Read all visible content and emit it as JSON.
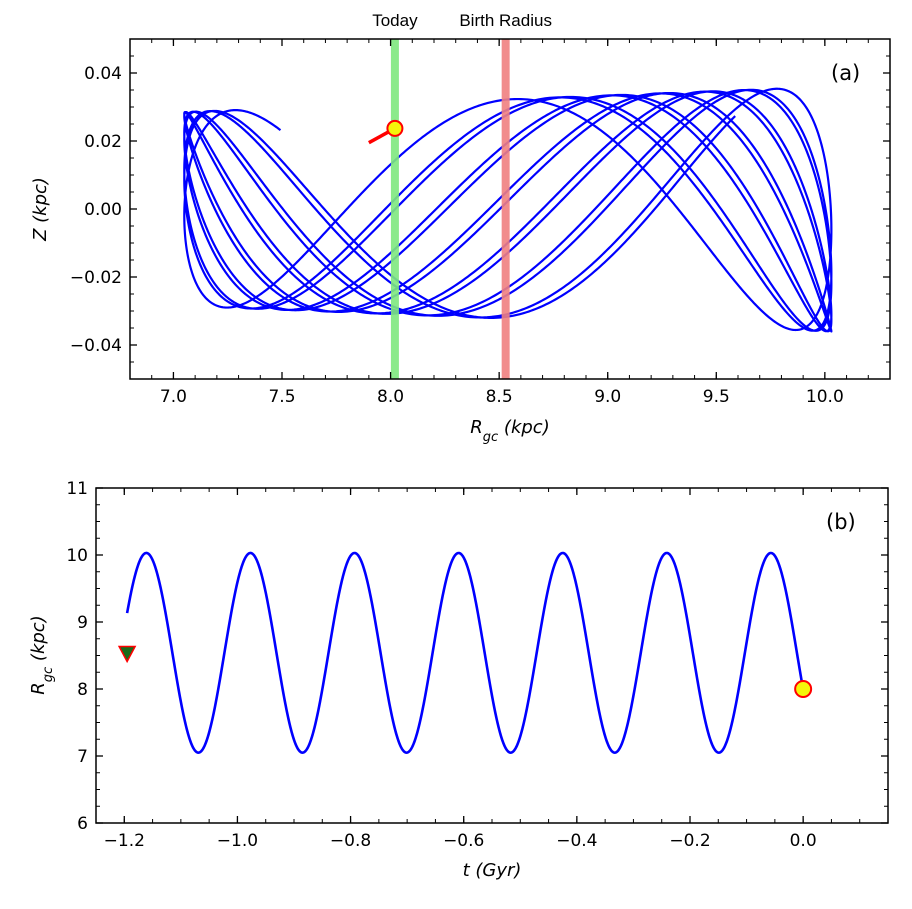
{
  "chart_data": [
    {
      "type": "line",
      "panel_label": "(a)",
      "xlabel_main": "R",
      "xlabel_sub": "gc",
      "xlabel_unit": " (kpc)",
      "ylabel": "Z (kpc)",
      "xlim": [
        6.8,
        10.3
      ],
      "ylim": [
        -0.05,
        0.05
      ],
      "xticks": [
        7.0,
        7.5,
        8.0,
        8.5,
        9.0,
        9.5,
        10.0
      ],
      "xtick_labels": [
        "7.0",
        "7.5",
        "8.0",
        "8.5",
        "9.0",
        "9.5",
        "10.0"
      ],
      "yticks": [
        -0.04,
        -0.02,
        0.0,
        0.02,
        0.04
      ],
      "ytick_labels": [
        "−0.04",
        "−0.02",
        "0.00",
        "0.02",
        "0.04"
      ],
      "orbit": {
        "r_min": 7.05,
        "r_max": 10.03,
        "z_amp_at_r_min": 0.0285,
        "z_amp_at_r_max": 0.036,
        "radial_cycles": 6.5,
        "vertical_cycles": 19,
        "color": "#0000ff"
      },
      "markers": [
        {
          "label": "Today",
          "x": 8.02,
          "color": "#7ee87e"
        },
        {
          "label": "Birth Radius",
          "x": 8.53,
          "color": "#f08080"
        }
      ],
      "current_position": {
        "x": 8.02,
        "y": 0.0237,
        "color": "#f5f50a",
        "edge": "#ff0000"
      },
      "start_segment": {
        "x": [
          7.9,
          8.02
        ],
        "y": [
          0.0195,
          0.0237
        ],
        "color": "#ff0000"
      }
    },
    {
      "type": "line",
      "panel_label": "(b)",
      "xlabel": "t (Gyr)",
      "ylabel_main": "R",
      "ylabel_sub": "gc",
      "ylabel_unit": " (kpc)",
      "xlim": [
        -1.25,
        0.15
      ],
      "ylim": [
        6,
        11
      ],
      "xticks": [
        -1.2,
        -1.0,
        -0.8,
        -0.6,
        -0.4,
        -0.2,
        0.0
      ],
      "xtick_labels": [
        "−1.2",
        "−1.0",
        "−0.8",
        "−0.6",
        "−0.4",
        "−0.2",
        "0.0"
      ],
      "yticks": [
        6,
        7,
        8,
        9,
        10,
        11
      ],
      "ytick_labels": [
        "6",
        "7",
        "8",
        "9",
        "10",
        "11"
      ],
      "series": {
        "t_start": -1.195,
        "t_end": 0.0,
        "r_center": 8.54,
        "r_amplitude": 1.49,
        "period": 0.184,
        "peak_time": -0.057,
        "color": "#0000ff"
      },
      "start_marker": {
        "x": -1.195,
        "y": 8.53,
        "color": "#1a6b1a",
        "edge": "#ff0000",
        "shape": "triangle-down"
      },
      "end_marker": {
        "x": 0.0,
        "y": 8.0,
        "color": "#f5f50a",
        "edge": "#ff0000",
        "shape": "circle"
      }
    }
  ]
}
